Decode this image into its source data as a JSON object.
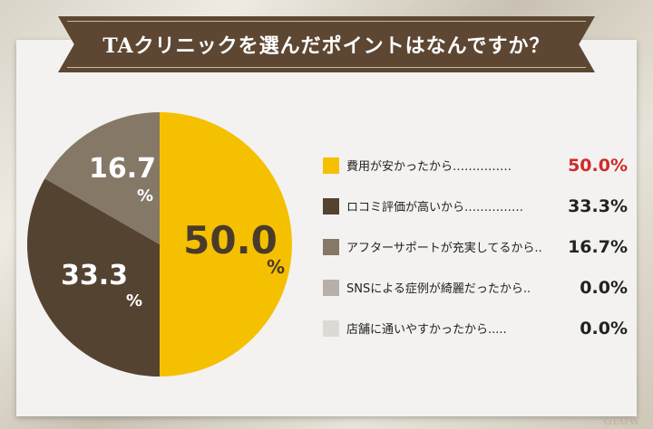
{
  "title": "TAクリニックを選んだポイントはなんですか？",
  "logo_text": "GLOW",
  "colors": {
    "yellow": "#f5c000",
    "dark_brown": "#554332",
    "medium_brown": "#857867",
    "light_gray": "#b7b0a7",
    "lighter_gray": "#dddad6",
    "highlight_red": "#d02a2a",
    "banner": "#5d4733"
  },
  "chart_data": {
    "type": "pie",
    "slices": [
      {
        "label": "費用が安かったから……………",
        "value": 50.0,
        "display": "50.0%",
        "color": "#f5c000"
      },
      {
        "label": "ロコミ評価が高いから……………",
        "value": 33.3,
        "display": "33.3%",
        "color": "#554332"
      },
      {
        "label": "アフターサポートが充実してるから..",
        "value": 16.7,
        "display": "16.7%",
        "color": "#857867"
      },
      {
        "label": "SNSによる症例が綺麗だったから..",
        "value": 0.0,
        "display": "0.0%",
        "color": "#b7b0a7"
      },
      {
        "label": "店舗に通いやすかったから.....",
        "value": 0.0,
        "display": "0.0%",
        "color": "#dddad6"
      }
    ],
    "slice_labels": [
      {
        "number": "50.0",
        "unit": "%"
      },
      {
        "number": "33.3",
        "unit": "%"
      },
      {
        "number": "16.7",
        "unit": "%"
      }
    ]
  }
}
